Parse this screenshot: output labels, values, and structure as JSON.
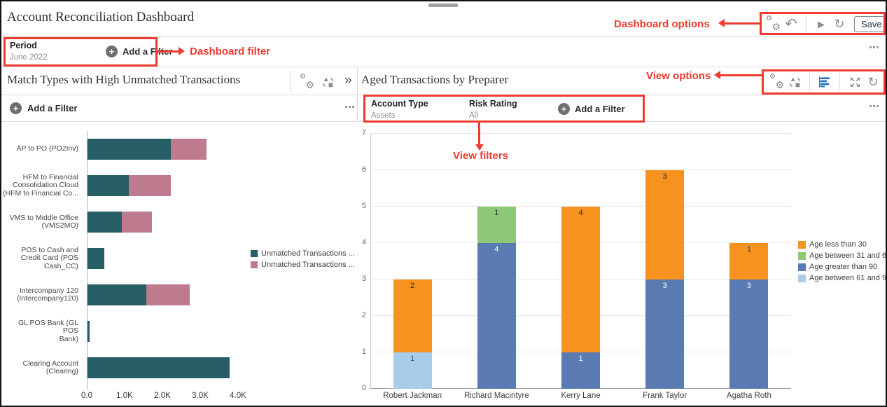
{
  "colors": {
    "annotation_red": "#ee3b2f",
    "icon_gray": "#8a8a8a",
    "active_icon_blue": "#1f6fc5"
  },
  "header": {
    "title": "Account Reconciliation Dashboard",
    "save_label": "Save"
  },
  "dashboard_filter": {
    "name": "Period",
    "value": "June 2022",
    "add_filter_label": "Add a Filter"
  },
  "annotations": {
    "dashboard_options": "Dashboard options",
    "dashboard_filter": "Dashboard filter",
    "view_options": "View options",
    "view_filters": "View filters"
  },
  "left_panel": {
    "title": "Match Types with High Unmatched Transactions",
    "add_filter_label": "Add a Filter",
    "chart_data": {
      "type": "bar",
      "orientation": "horizontal",
      "title": "Match Types with High Unmatched Transactions",
      "categories": [
        "AP to PO (PO2Inv)",
        "HFM to Financial Consolidation Cloud (HFM to Financial Co...",
        "VMS to Middle Office (VMS2MO)",
        "POS to Cash and Credit Card (POS Cash_CC)",
        "Intercompany 120 (Intercompany120)",
        "GL POS Bank (GL POS Bank)",
        "Clearing Account (Clearing)"
      ],
      "category_display_lines": [
        [
          "AP to PO (PO2Inv)"
        ],
        [
          "HFM to Financial",
          "Consolidation Cloud",
          "(HFM to Financial Co..."
        ],
        [
          "VMS to Middle Office",
          "(VMS2MO)"
        ],
        [
          "POS to Cash and",
          "Credit Card (POS",
          "Cash_CC)"
        ],
        [
          "Intercompany 120",
          "(Intercompany120)"
        ],
        [
          "GL POS Bank (GL POS",
          "Bank)"
        ],
        [
          "Clearing Account",
          "(Clearing)"
        ]
      ],
      "series": [
        {
          "name": "Unmatched Transactions ...",
          "color": "#275e66",
          "values": [
            2200,
            1100,
            900,
            450,
            1550,
            50,
            3750
          ]
        },
        {
          "name": "Unmatched Transactions ...",
          "color": "#bf7b8e",
          "values": [
            950,
            1100,
            800,
            0,
            1150,
            0,
            0
          ]
        }
      ],
      "x_tick_labels": [
        "0.0",
        "1.0K",
        "2.0K",
        "3.0K",
        "4.0K"
      ],
      "x_tick_values": [
        0,
        1000,
        2000,
        3000,
        4000
      ],
      "xlim": [
        0,
        4200
      ],
      "grid": false,
      "legend_position": "right"
    }
  },
  "right_panel": {
    "title": "Aged Transactions by Preparer",
    "filters": [
      {
        "name": "Account Type",
        "value": "Assets"
      },
      {
        "name": "Risk Rating",
        "value": "All"
      }
    ],
    "add_filter_label": "Add a Filter",
    "chart_data": {
      "type": "bar",
      "subtype": "stacked-vertical",
      "title": "Aged Transactions by Preparer",
      "categories": [
        "Robert Jackman",
        "Richard Macintyre",
        "Kerry Lane",
        "Frank Taylor",
        "Agatha Roth"
      ],
      "series": [
        {
          "name": "Age less than 30",
          "color": "#f6921e",
          "label_color": "#2e2e2e",
          "values": [
            2,
            0,
            4,
            3,
            1
          ]
        },
        {
          "name": "Age between 31 and 60",
          "color": "#8cc878",
          "label_color": "#2e2e2e",
          "values": [
            0,
            1,
            0,
            0,
            0
          ]
        },
        {
          "name": "Age greater than 90",
          "color": "#5a7ab2",
          "label_color": "#ffffff",
          "values": [
            0,
            4,
            1,
            3,
            3
          ]
        },
        {
          "name": "Age between 61 and 90",
          "color": "#a8cde9",
          "label_color": "#2f4a68",
          "values": [
            1,
            0,
            0,
            0,
            0
          ]
        }
      ],
      "stack_totals": [
        3,
        5,
        5,
        6,
        4
      ],
      "y_ticks": [
        0,
        1,
        2,
        3,
        4,
        5,
        6,
        7
      ],
      "ylim": [
        0,
        7
      ],
      "grid": true,
      "legend_position": "right"
    }
  }
}
